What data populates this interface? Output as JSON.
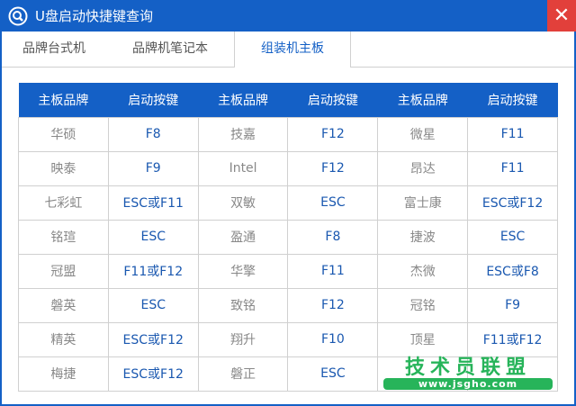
{
  "window": {
    "title": "U盘启动快捷键查询",
    "close_label": "✕"
  },
  "tabs": [
    {
      "label": "品牌台式机"
    },
    {
      "label": "品牌机笔记本"
    },
    {
      "label": "组装机主板",
      "active": true
    }
  ],
  "table": {
    "headers": [
      "主板品牌",
      "启动按键",
      "主板品牌",
      "启动按键",
      "主板品牌",
      "启动按键"
    ],
    "rows": [
      [
        "华硕",
        "F8",
        "技嘉",
        "F12",
        "微星",
        "F11"
      ],
      [
        "映泰",
        "F9",
        "Intel",
        "F12",
        "昂达",
        "F11"
      ],
      [
        "七彩虹",
        "ESC或F11",
        "双敏",
        "ESC",
        "富士康",
        "ESC或F12"
      ],
      [
        "铭瑄",
        "ESC",
        "盈通",
        "F8",
        "捷波",
        "ESC"
      ],
      [
        "冠盟",
        "F11或F12",
        "华擎",
        "F11",
        "杰微",
        "ESC或F8"
      ],
      [
        "磐英",
        "ESC",
        "致铭",
        "F12",
        "冠铭",
        "F9"
      ],
      [
        "精英",
        "ESC或F12",
        "翔升",
        "F10",
        "顶星",
        "F11或F12"
      ],
      [
        "梅捷",
        "ESC或F12",
        "磐正",
        "ESC",
        "",
        ""
      ]
    ]
  },
  "watermark": {
    "text": "技术员联盟",
    "url": "www.jsgho.com"
  },
  "colors": {
    "accent": "#1460c6",
    "close": "#e2403b",
    "watermark": "#27b45a"
  }
}
